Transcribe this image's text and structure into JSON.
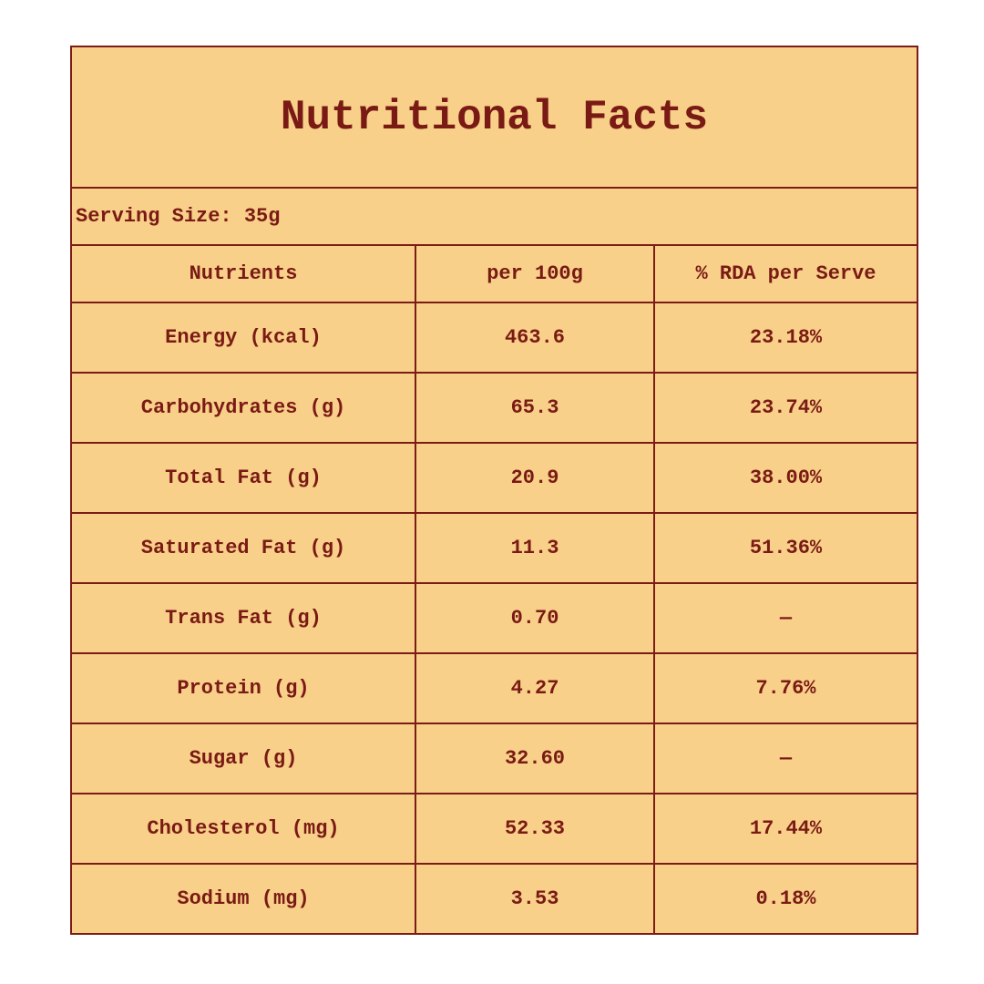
{
  "title": "Nutritional Facts",
  "serving_size": "Serving Size: 35g",
  "headers": [
    "Nutrients",
    "per 100g",
    "% RDA per Serve"
  ],
  "rows": [
    [
      "Energy (kcal)",
      "463.6",
      "23.18%"
    ],
    [
      "Carbohydrates (g)",
      "65.3",
      "23.74%"
    ],
    [
      "Total Fat (g)",
      "20.9",
      "38.00%"
    ],
    [
      "Saturated Fat (g)",
      "11.3",
      "51.36%"
    ],
    [
      "Trans Fat (g)",
      "0.70",
      "—"
    ],
    [
      "Protein (g)",
      "4.27",
      "7.76%"
    ],
    [
      "Sugar (g)",
      "32.60",
      "—"
    ],
    [
      "Cholesterol (mg)",
      "52.33",
      "17.44%"
    ],
    [
      "Sodium (mg)",
      "3.53",
      "0.18%"
    ]
  ],
  "colors": {
    "background": "#f8d08a",
    "text": "#7a1a14",
    "border": "#7b1c17"
  }
}
